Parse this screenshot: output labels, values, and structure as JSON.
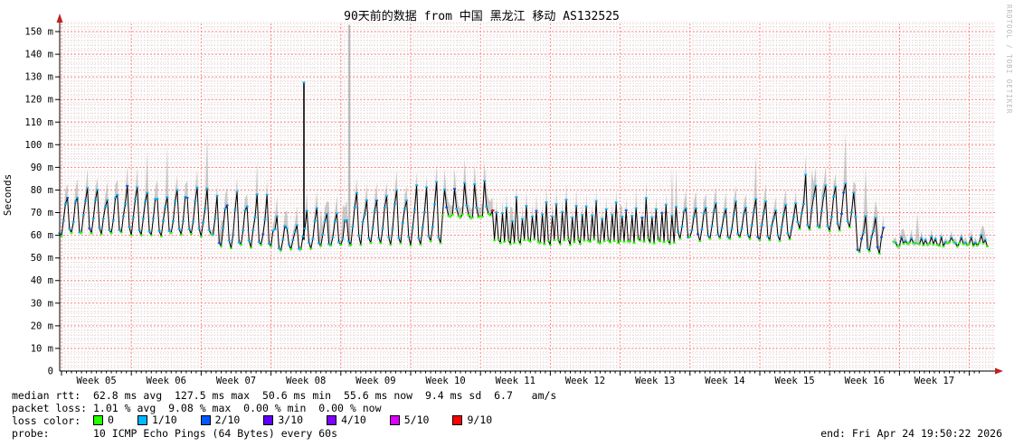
{
  "header": {
    "title": "90天前的数据 from 中国 黑龙江 移动 AS132525"
  },
  "watermark": "RRDTOOL / TOBI OETIKER",
  "chart_data": {
    "type": "line",
    "subtype": "smokeping-latency",
    "title": "90天前的数据 from 中国 黑龙江 移动 AS132525",
    "ylabel": "Seconds",
    "y_tick_suffix": " m",
    "y_ticks": [
      0,
      10,
      20,
      30,
      40,
      50,
      60,
      70,
      80,
      90,
      100,
      110,
      120,
      130,
      140,
      150
    ],
    "ylim": [
      0,
      155
    ],
    "y_minor_step": 2,
    "x_week_labels": [
      "Week 05",
      "Week 06",
      "Week 07",
      "Week 08",
      "Week 09",
      "Week 10",
      "Week 11",
      "Week 12",
      "Week 13",
      "Week 14",
      "Week 15",
      "Week 16",
      "Week 17"
    ],
    "x_span_days": 93,
    "grid": {
      "major_color": "#ff8585",
      "minor_color": "#e3cdcd",
      "axis_color": "#000000",
      "arrow_color": "#c41f1f"
    },
    "series": {
      "name": "median rtt",
      "line_color": "#000000",
      "smoke_color": "#9a9a9a",
      "segments": [
        {
          "start_day": -0.2,
          "end_day": 15.1,
          "low_ms": 59.0,
          "high_ms": 80.0,
          "pattern": "saw"
        },
        {
          "start_day": 15.1,
          "end_day": 21.3,
          "low_ms": 54.0,
          "high_ms": 75.0,
          "pattern": "saw"
        },
        {
          "start_day": 21.3,
          "end_day": 24.0,
          "low_ms": 53.0,
          "high_ms": 66.0,
          "pattern": "saw"
        },
        {
          "start_day": 24.0,
          "end_day": 28.9,
          "low_ms": 54.0,
          "high_ms": 70.0,
          "pattern": "saw"
        },
        {
          "start_day": 28.9,
          "end_day": 38.0,
          "low_ms": 55.0,
          "high_ms": 79.0,
          "pattern": "saw"
        },
        {
          "start_day": 38.0,
          "end_day": 43.1,
          "low_ms": 67.5,
          "high_ms": 82.0,
          "pattern": "plateau"
        },
        {
          "start_day": 43.1,
          "end_day": 61.4,
          "low_ms": 56.0,
          "high_ms": 74.0,
          "pattern": "spike2"
        },
        {
          "start_day": 61.4,
          "end_day": 73.6,
          "low_ms": 57.5,
          "high_ms": 73.0,
          "pattern": "saw"
        },
        {
          "start_day": 73.6,
          "end_day": 79.5,
          "low_ms": 61.0,
          "high_ms": 84.0,
          "pattern": "saw"
        },
        {
          "start_day": 79.5,
          "end_day": 82.4,
          "low_ms": 51.5,
          "high_ms": 68.0,
          "pattern": "saw"
        },
        {
          "start_day": 83.4,
          "end_day": 92.9,
          "low_ms": 55.8,
          "high_ms": 64.0,
          "pattern": "flat"
        }
      ],
      "events": {
        "max_spike": {
          "day": 24.3,
          "value_ms": 127.5,
          "base_ms": 58,
          "marker_loss": "1/10"
        },
        "no_data_column": {
          "day": 28.85,
          "from_ms": 55,
          "to_ms": 153
        },
        "high_loss_marker": {
          "day": 43.25,
          "value_ms": 71,
          "loss": "9/10"
        },
        "data_gap_days": [
          82.4,
          83.4
        ],
        "data_end_day": 92.9
      }
    }
  },
  "stats": {
    "median_rtt": {
      "text": "median rtt:  62.8 ms avg  127.5 ms max  50.6 ms min  55.6 ms now  9.4 ms sd  6.7   am/s",
      "avg_ms": 62.8,
      "max_ms": 127.5,
      "min_ms": 50.6,
      "now_ms": 55.6,
      "sd_ms": 9.4,
      "am_s": 6.7
    },
    "packet_loss": {
      "text": "packet loss: 1.01 % avg  9.08 % max  0.00 % min  0.00 % now",
      "avg_pct": 1.01,
      "max_pct": 9.08,
      "min_pct": 0.0,
      "now_pct": 0.0
    },
    "loss_color_prefix": "loss color:  ",
    "loss_levels": [
      {
        "label": "0",
        "color": "#26ff00"
      },
      {
        "label": "1/10",
        "color": "#00b8ff"
      },
      {
        "label": "2/10",
        "color": "#0059ff"
      },
      {
        "label": "3/10",
        "color": "#5e00ff"
      },
      {
        "label": "4/10",
        "color": "#7e00ff"
      },
      {
        "label": "5/10",
        "color": "#dd00ff"
      },
      {
        "label": "9/10",
        "color": "#ff0000"
      }
    ],
    "probe_text": "probe:       10 ICMP Echo Pings (64 Bytes) every 60s",
    "end_time": "end: Fri Apr 24 19:50:22 2026"
  }
}
